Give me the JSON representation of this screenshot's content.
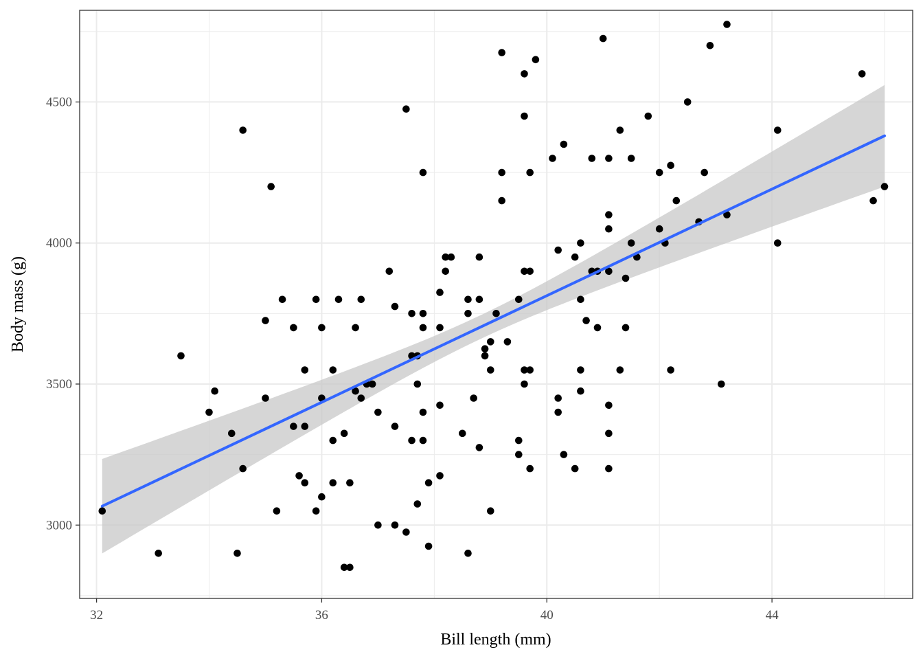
{
  "chart_data": {
    "type": "scatter",
    "title": "",
    "xlabel": "Bill length (mm)",
    "ylabel": "Body mass (g)",
    "xlim": [
      31.7,
      46.5
    ],
    "ylim": [
      2740,
      4825
    ],
    "x_ticks": [
      32,
      36,
      40,
      44
    ],
    "y_ticks": [
      3000,
      3500,
      4000,
      4500
    ],
    "x_tick_labels": [
      "32",
      "36",
      "40",
      "44"
    ],
    "y_tick_labels": [
      "3000",
      "3500",
      "4000",
      "4500"
    ],
    "grid": true,
    "legend": "none",
    "point_color": "#000000",
    "fit": {
      "method": "linear regression with confidence band",
      "line_color": "#3366FF",
      "band_color": "#C8C8C8",
      "x": [
        32.1,
        46.0
      ],
      "y": [
        3067,
        4380
      ],
      "band_lower": [
        2900,
        4200
      ],
      "band_upper": [
        3235,
        4560
      ],
      "band_center_x": 38.8,
      "band_center_y": 3620,
      "band_center_halfwidth": 42
    },
    "points": [
      [
        32.1,
        3050
      ],
      [
        33.1,
        2900
      ],
      [
        33.5,
        3600
      ],
      [
        34.0,
        3400
      ],
      [
        34.1,
        3475
      ],
      [
        34.4,
        3325
      ],
      [
        34.5,
        2900
      ],
      [
        34.6,
        4400
      ],
      [
        34.6,
        3200
      ],
      [
        35.0,
        3725
      ],
      [
        35.0,
        3450
      ],
      [
        35.1,
        4200
      ],
      [
        35.2,
        3050
      ],
      [
        35.3,
        3800
      ],
      [
        35.5,
        3700
      ],
      [
        35.5,
        3350
      ],
      [
        35.6,
        3175
      ],
      [
        35.7,
        3550
      ],
      [
        35.7,
        3350
      ],
      [
        35.7,
        3150
      ],
      [
        35.9,
        3800
      ],
      [
        35.9,
        3050
      ],
      [
        36.0,
        3700
      ],
      [
        36.0,
        3450
      ],
      [
        36.0,
        3100
      ],
      [
        36.2,
        3550
      ],
      [
        36.2,
        3300
      ],
      [
        36.2,
        3150
      ],
      [
        36.3,
        3800
      ],
      [
        36.4,
        3325
      ],
      [
        36.4,
        2850
      ],
      [
        36.5,
        3150
      ],
      [
        36.5,
        2850
      ],
      [
        36.6,
        3700
      ],
      [
        36.6,
        3475
      ],
      [
        36.7,
        3800
      ],
      [
        36.7,
        3450
      ],
      [
        36.8,
        3500
      ],
      [
        36.9,
        3500
      ],
      [
        37.0,
        3400
      ],
      [
        37.0,
        3000
      ],
      [
        37.2,
        3900
      ],
      [
        37.3,
        3775
      ],
      [
        37.3,
        3350
      ],
      [
        37.3,
        3000
      ],
      [
        37.5,
        4475
      ],
      [
        37.5,
        2975
      ],
      [
        37.6,
        3750
      ],
      [
        37.6,
        3600
      ],
      [
        37.6,
        3300
      ],
      [
        37.7,
        3600
      ],
      [
        37.7,
        3500
      ],
      [
        37.7,
        3075
      ],
      [
        37.8,
        4250
      ],
      [
        37.8,
        3750
      ],
      [
        37.8,
        3700
      ],
      [
        37.8,
        3400
      ],
      [
        37.8,
        3300
      ],
      [
        37.9,
        3150
      ],
      [
        37.9,
        2925
      ],
      [
        38.1,
        3825
      ],
      [
        38.1,
        3700
      ],
      [
        38.1,
        3425
      ],
      [
        38.1,
        3175
      ],
      [
        38.2,
        3950
      ],
      [
        38.2,
        3900
      ],
      [
        38.3,
        3950
      ],
      [
        38.5,
        3325
      ],
      [
        38.6,
        3800
      ],
      [
        38.6,
        3750
      ],
      [
        38.6,
        2900
      ],
      [
        38.7,
        3450
      ],
      [
        38.8,
        3950
      ],
      [
        38.8,
        3800
      ],
      [
        38.8,
        3275
      ],
      [
        38.9,
        3625
      ],
      [
        38.9,
        3600
      ],
      [
        39.0,
        3650
      ],
      [
        39.0,
        3550
      ],
      [
        39.0,
        3050
      ],
      [
        39.1,
        3750
      ],
      [
        39.2,
        4675
      ],
      [
        39.2,
        4250
      ],
      [
        39.2,
        4150
      ],
      [
        39.3,
        3650
      ],
      [
        39.5,
        3800
      ],
      [
        39.5,
        3300
      ],
      [
        39.5,
        3250
      ],
      [
        39.6,
        4600
      ],
      [
        39.6,
        4450
      ],
      [
        39.6,
        3900
      ],
      [
        39.6,
        3550
      ],
      [
        39.6,
        3500
      ],
      [
        39.7,
        4250
      ],
      [
        39.7,
        3900
      ],
      [
        39.7,
        3550
      ],
      [
        39.7,
        3200
      ],
      [
        39.8,
        4650
      ],
      [
        40.1,
        4300
      ],
      [
        40.2,
        3975
      ],
      [
        40.2,
        3450
      ],
      [
        40.2,
        3400
      ],
      [
        40.3,
        4350
      ],
      [
        40.3,
        3250
      ],
      [
        40.5,
        3950
      ],
      [
        40.5,
        3200
      ],
      [
        40.6,
        4000
      ],
      [
        40.6,
        3800
      ],
      [
        40.6,
        3550
      ],
      [
        40.6,
        3475
      ],
      [
        40.7,
        3725
      ],
      [
        40.8,
        4300
      ],
      [
        40.8,
        3900
      ],
      [
        40.9,
        3900
      ],
      [
        40.9,
        3700
      ],
      [
        41.0,
        4725
      ],
      [
        41.1,
        4300
      ],
      [
        41.1,
        4100
      ],
      [
        41.1,
        4050
      ],
      [
        41.1,
        3900
      ],
      [
        41.1,
        3425
      ],
      [
        41.1,
        3325
      ],
      [
        41.1,
        3200
      ],
      [
        41.3,
        4400
      ],
      [
        41.3,
        3550
      ],
      [
        41.4,
        3875
      ],
      [
        41.4,
        3700
      ],
      [
        41.5,
        4300
      ],
      [
        41.5,
        4000
      ],
      [
        41.6,
        3950
      ],
      [
        41.8,
        4450
      ],
      [
        42.0,
        4250
      ],
      [
        42.0,
        4050
      ],
      [
        42.1,
        4000
      ],
      [
        42.2,
        4275
      ],
      [
        42.2,
        3550
      ],
      [
        42.3,
        4150
      ],
      [
        42.5,
        4500
      ],
      [
        42.7,
        4075
      ],
      [
        42.8,
        4250
      ],
      [
        42.9,
        4700
      ],
      [
        43.1,
        3500
      ],
      [
        43.2,
        4775
      ],
      [
        43.2,
        4100
      ],
      [
        44.1,
        4400
      ],
      [
        44.1,
        4000
      ],
      [
        45.6,
        4600
      ],
      [
        45.8,
        4150
      ],
      [
        46.0,
        4200
      ]
    ]
  }
}
